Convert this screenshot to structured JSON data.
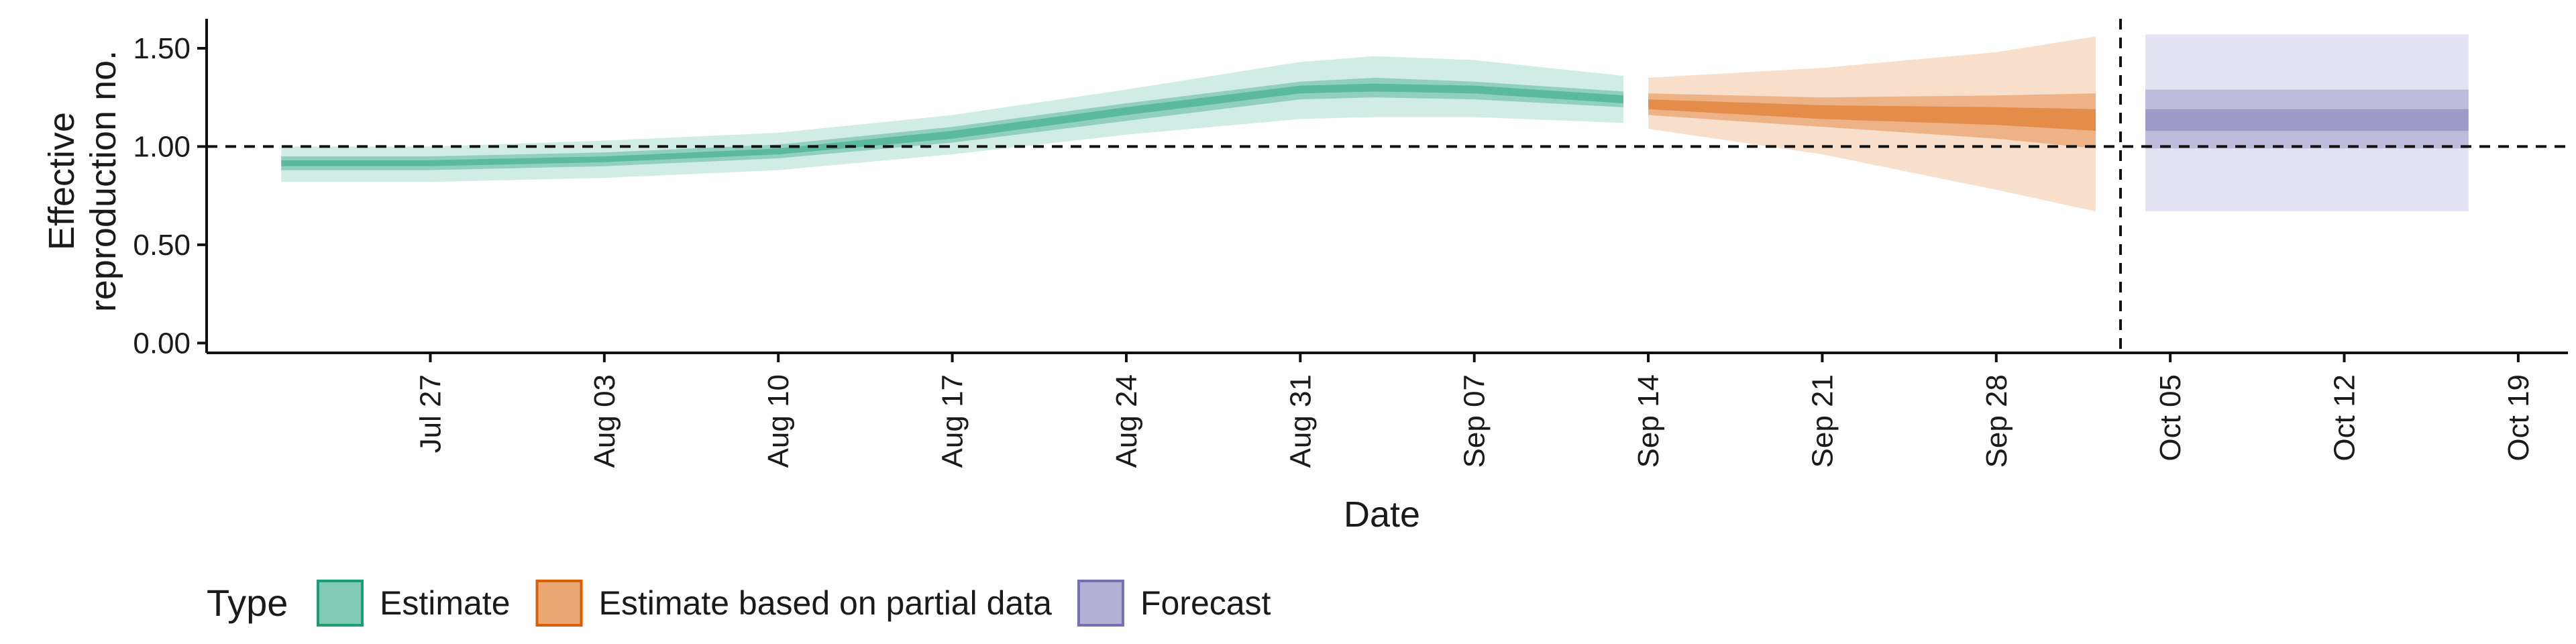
{
  "chart_data": {
    "type": "area",
    "title": "",
    "xlabel": "Date",
    "ylabel": "Effective reproduction no.",
    "ylabel_lines": [
      "Effective",
      "reproduction no."
    ],
    "ylim": [
      -0.05,
      1.65
    ],
    "xlim": [
      "2020-07-18",
      "2020-10-21"
    ],
    "y_ticks": [
      {
        "value": 0.0,
        "label": "0.00"
      },
      {
        "value": 0.5,
        "label": "0.50"
      },
      {
        "value": 1.0,
        "label": "1.00"
      },
      {
        "value": 1.5,
        "label": "1.50"
      }
    ],
    "x_ticks": [
      {
        "date": "2020-07-27",
        "label": "Jul 27"
      },
      {
        "date": "2020-08-03",
        "label": "Aug 03"
      },
      {
        "date": "2020-08-10",
        "label": "Aug 10"
      },
      {
        "date": "2020-08-17",
        "label": "Aug 17"
      },
      {
        "date": "2020-08-24",
        "label": "Aug 24"
      },
      {
        "date": "2020-08-31",
        "label": "Aug 31"
      },
      {
        "date": "2020-09-07",
        "label": "Sep 07"
      },
      {
        "date": "2020-09-14",
        "label": "Sep 14"
      },
      {
        "date": "2020-09-21",
        "label": "Sep 21"
      },
      {
        "date": "2020-09-28",
        "label": "Sep 28"
      },
      {
        "date": "2020-10-05",
        "label": "Oct 05"
      },
      {
        "date": "2020-10-12",
        "label": "Oct 12"
      },
      {
        "date": "2020-10-19",
        "label": "Oct 19"
      }
    ],
    "reference_lines": {
      "horizontal_y": 1.0,
      "vertical_date": "2020-10-03"
    },
    "grid": false,
    "legend": {
      "title": "Type",
      "placement": "bottom-left"
    },
    "series": [
      {
        "name": "Estimate",
        "fill": "#1b9e77",
        "stroke": "#1b9e77",
        "points": [
          {
            "date": "2020-07-21",
            "lo90": 0.82,
            "hi90": 1.0,
            "lo50": 0.88,
            "hi50": 0.95,
            "lo20": 0.9,
            "hi20": 0.93
          },
          {
            "date": "2020-07-27",
            "lo90": 0.82,
            "hi90": 1.0,
            "lo50": 0.88,
            "hi50": 0.95,
            "lo20": 0.9,
            "hi20": 0.93
          },
          {
            "date": "2020-08-03",
            "lo90": 0.84,
            "hi90": 1.03,
            "lo50": 0.9,
            "hi50": 0.97,
            "lo20": 0.92,
            "hi20": 0.95
          },
          {
            "date": "2020-08-10",
            "lo90": 0.88,
            "hi90": 1.07,
            "lo50": 0.94,
            "hi50": 1.01,
            "lo20": 0.96,
            "hi20": 0.99
          },
          {
            "date": "2020-08-17",
            "lo90": 0.96,
            "hi90": 1.16,
            "lo50": 1.02,
            "hi50": 1.1,
            "lo20": 1.04,
            "hi20": 1.08
          },
          {
            "date": "2020-08-24",
            "lo90": 1.06,
            "hi90": 1.29,
            "lo50": 1.13,
            "hi50": 1.22,
            "lo20": 1.16,
            "hi20": 1.2
          },
          {
            "date": "2020-08-31",
            "lo90": 1.14,
            "hi90": 1.43,
            "lo50": 1.24,
            "hi50": 1.33,
            "lo20": 1.27,
            "hi20": 1.31
          },
          {
            "date": "2020-09-03",
            "lo90": 1.15,
            "hi90": 1.46,
            "lo50": 1.25,
            "hi50": 1.35,
            "lo20": 1.28,
            "hi20": 1.32
          },
          {
            "date": "2020-09-07",
            "lo90": 1.15,
            "hi90": 1.44,
            "lo50": 1.24,
            "hi50": 1.33,
            "lo20": 1.27,
            "hi20": 1.31
          },
          {
            "date": "2020-09-13",
            "lo90": 1.12,
            "hi90": 1.36,
            "lo50": 1.2,
            "hi50": 1.28,
            "lo20": 1.22,
            "hi20": 1.26
          }
        ]
      },
      {
        "name": "Estimate based on partial data",
        "fill": "#d95f02",
        "stroke": "#d95f02",
        "points": [
          {
            "date": "2020-09-14",
            "lo90": 1.09,
            "hi90": 1.35,
            "lo50": 1.16,
            "hi50": 1.27,
            "lo20": 1.19,
            "hi20": 1.24
          },
          {
            "date": "2020-09-21",
            "lo90": 0.96,
            "hi90": 1.4,
            "lo50": 1.1,
            "hi50": 1.25,
            "lo20": 1.14,
            "hi20": 1.21
          },
          {
            "date": "2020-09-28",
            "lo90": 0.78,
            "hi90": 1.48,
            "lo50": 1.04,
            "hi50": 1.26,
            "lo20": 1.11,
            "hi20": 1.2
          },
          {
            "date": "2020-10-02",
            "lo90": 0.67,
            "hi90": 1.56,
            "lo50": 0.99,
            "hi50": 1.27,
            "lo20": 1.08,
            "hi20": 1.19
          }
        ]
      },
      {
        "name": "Forecast",
        "fill": "#7570b3",
        "stroke": "#7570b3",
        "points": [
          {
            "date": "2020-10-04",
            "lo90": 0.67,
            "hi90": 1.57,
            "lo50": 0.99,
            "hi50": 1.29,
            "lo20": 1.08,
            "hi20": 1.19
          },
          {
            "date": "2020-10-17",
            "lo90": 0.67,
            "hi90": 1.57,
            "lo50": 0.99,
            "hi50": 1.29,
            "lo20": 1.08,
            "hi20": 1.19
          }
        ]
      }
    ]
  }
}
